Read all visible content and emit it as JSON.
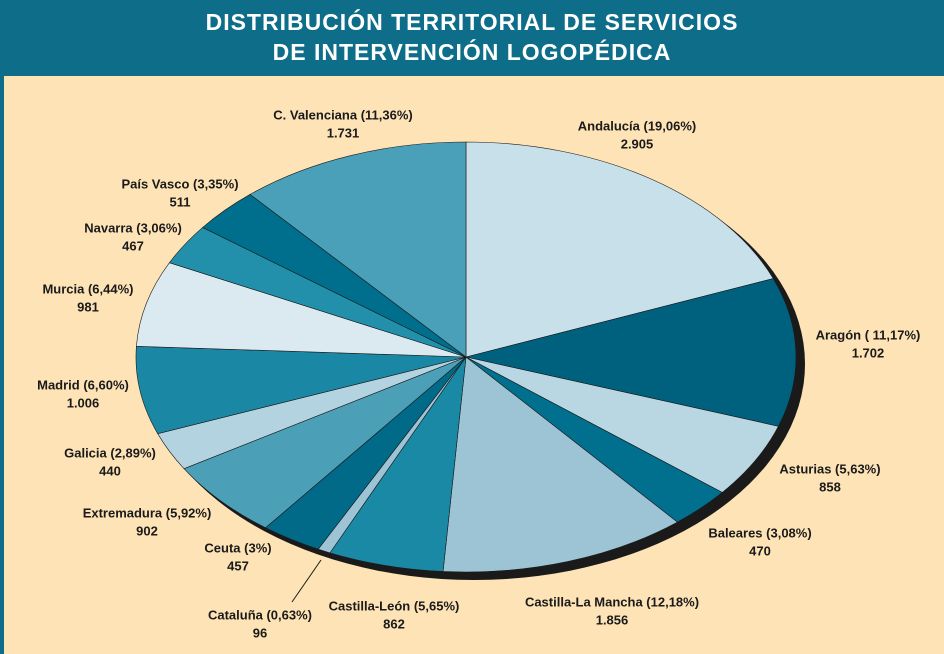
{
  "chart_data": {
    "type": "pie",
    "title": [
      "DISTRIBUCIÓN TERRITORIAL DE SERVICIOS",
      "DE INTERVENCIÓN LOGOPÉDICA"
    ],
    "categories": [
      "Andalucía (19,06%)",
      "Aragón ( 11,17%)",
      "Asturias (5,63%)",
      "Baleares (3,08%)",
      "Castilla-La Mancha (12,18%)",
      "Castilla-León (5,65%)",
      "Cataluña (0,63%)",
      "Ceuta (3%)",
      "Extremadura (5,92%)",
      "Galicia (2,89%)",
      "Madrid (6,60%)",
      "Murcia (6,44%)",
      "Navarra (3,06%)",
      "País Vasco (3,35%)",
      "C. Valenciana (11,36%)"
    ],
    "values": [
      2905,
      1702,
      858,
      470,
      1856,
      862,
      96,
      457,
      902,
      440,
      1006,
      981,
      467,
      511,
      1731
    ],
    "value_labels": [
      "2.905",
      "1.702",
      "858",
      "470",
      "1.856",
      "862",
      "96",
      "457",
      "902",
      "440",
      "1.006",
      "981",
      "467",
      "511",
      "1.731"
    ],
    "colors": [
      "#c8e0ea",
      "#00617f",
      "#b9d7e3",
      "#00708e",
      "#9dc4d4",
      "#1a89a6",
      "#9dc4d4",
      "#006a88",
      "#4b9fb7",
      "#b2d3df",
      "#1a87a4",
      "#dbeaf1",
      "#2290aa",
      "#006f8d",
      "#4aa0b8"
    ]
  }
}
